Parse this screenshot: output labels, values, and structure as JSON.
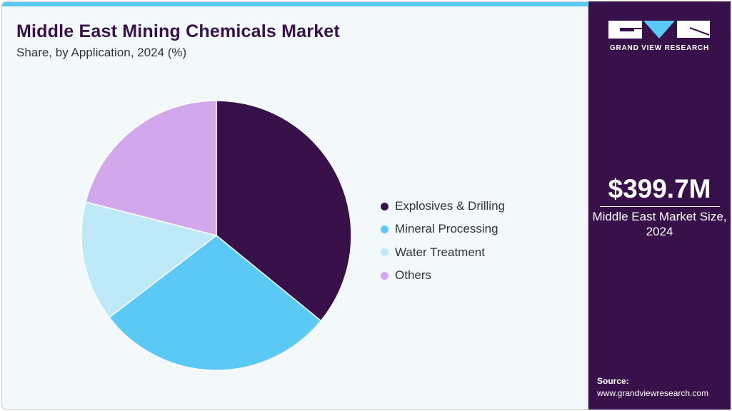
{
  "header": {
    "title": "Middle East Mining Chemicals Market",
    "subtitle": "Share, by Application, 2024 (%)"
  },
  "chart_data": {
    "type": "pie",
    "title": "Middle East Mining Chemicals Market",
    "subtitle": "Share, by Application, 2024 (%)",
    "categories": [
      "Explosives & Drilling",
      "Mineral Processing",
      "Water Treatment",
      "Others"
    ],
    "values": [
      35.9,
      28.7,
      14.4,
      21.0
    ],
    "colors": [
      "#38104a",
      "#5bc9f5",
      "#bde9f9",
      "#d3a7ec"
    ],
    "legend_position": "right",
    "start": "top, clockwise"
  },
  "sidebar": {
    "logo_text": "GRAND VIEW RESEARCH",
    "market_value": "$399.7M",
    "market_label": "Middle East Market Size, 2024",
    "source_label": "Source:",
    "source_url": "www.grandviewresearch.com"
  }
}
